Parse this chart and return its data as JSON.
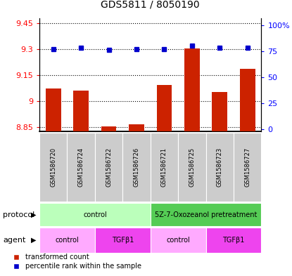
{
  "title": "GDS5811 / 8050190",
  "samples": [
    "GSM1586720",
    "GSM1586724",
    "GSM1586722",
    "GSM1586726",
    "GSM1586721",
    "GSM1586725",
    "GSM1586723",
    "GSM1586727"
  ],
  "red_values": [
    9.07,
    9.06,
    8.851,
    8.865,
    9.09,
    9.305,
    9.05,
    9.185
  ],
  "blue_values": [
    77,
    78,
    76,
    77,
    77,
    80,
    78,
    78
  ],
  "ylim_left": [
    8.825,
    9.48
  ],
  "ylim_right": [
    -2,
    107
  ],
  "yticks_left": [
    8.85,
    9.0,
    9.15,
    9.3,
    9.45
  ],
  "yticks_right": [
    0,
    25,
    50,
    75,
    100
  ],
  "ytick_labels_left": [
    "8.85",
    "9",
    "9.15",
    "9.3",
    "9.45"
  ],
  "ytick_labels_right": [
    "0",
    "25",
    "50",
    "75",
    "100%"
  ],
  "protocol_groups": [
    {
      "label": "control",
      "start": 0,
      "end": 4,
      "color": "#bbffbb"
    },
    {
      "label": "5Z-7-Oxozeanol pretreatment",
      "start": 4,
      "end": 8,
      "color": "#55cc55"
    }
  ],
  "agent_groups": [
    {
      "label": "control",
      "start": 0,
      "end": 2,
      "color": "#ffaaff"
    },
    {
      "label": "TGFβ1",
      "start": 2,
      "end": 4,
      "color": "#ee44ee"
    },
    {
      "label": "control",
      "start": 4,
      "end": 6,
      "color": "#ffaaff"
    },
    {
      "label": "TGFβ1",
      "start": 6,
      "end": 8,
      "color": "#ee44ee"
    }
  ],
  "bar_color": "#cc2200",
  "dot_color": "#0000cc",
  "base_value": 8.825,
  "grid_color": "#000000",
  "background_color": "#ffffff",
  "sample_bg_color": "#cccccc",
  "label_protocol": "protocol",
  "label_agent": "agent",
  "legend_red": "transformed count",
  "legend_blue": "percentile rank within the sample",
  "fig_width": 4.15,
  "fig_height": 3.93,
  "fig_dpi": 100
}
